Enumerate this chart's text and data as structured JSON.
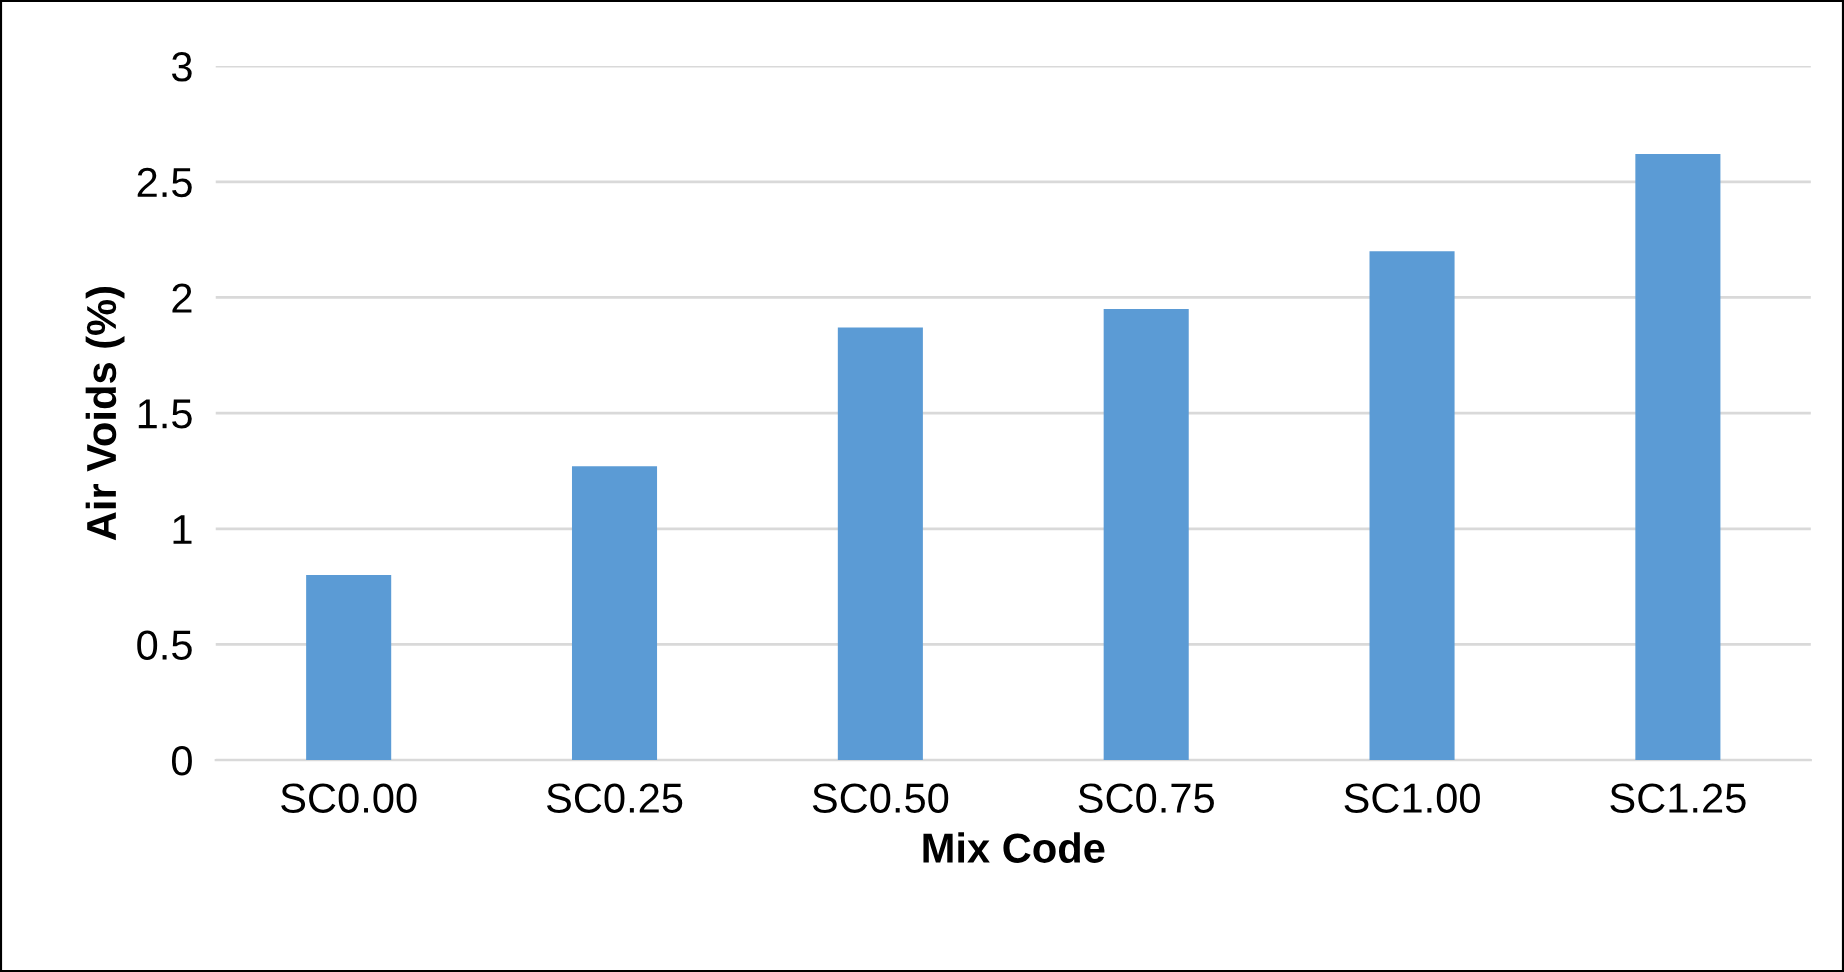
{
  "chart_data": {
    "type": "bar",
    "xlabel": "Mix Code",
    "ylabel": "Air Voids (%)",
    "categories": [
      "SC0.00",
      "SC0.25",
      "SC0.50",
      "SC0.75",
      "SC1.00",
      "SC1.25"
    ],
    "values": [
      0.8,
      1.27,
      1.87,
      1.95,
      2.2,
      2.62
    ],
    "color": "#5b9bd5",
    "ylim": [
      0,
      3
    ],
    "yticks": [
      0,
      0.5,
      1,
      1.5,
      2,
      2.5,
      3
    ],
    "grid": "y",
    "legend": false
  }
}
